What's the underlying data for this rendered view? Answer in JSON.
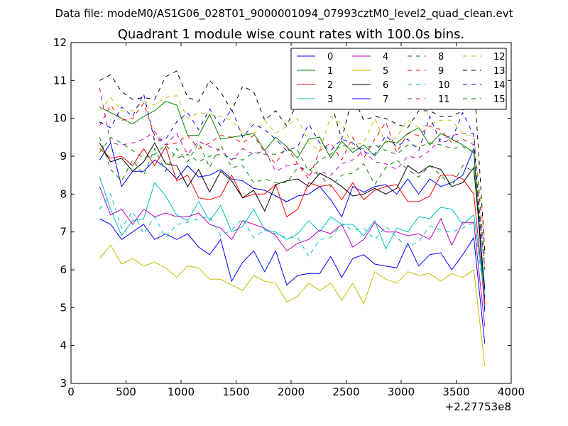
{
  "chart_data": {
    "type": "line",
    "suptitle": "Data file: modeM0/AS1G06_028T01_9000001094_07993cztM0_level2_quad_clean.evt",
    "title": "Quadrant 1 module wise count rates with 100.0s bins.",
    "xlabel": "",
    "ylabel": "",
    "x_offset_label": "+2.27753e8",
    "xlim": [
      0,
      4000
    ],
    "ylim": [
      3,
      12
    ],
    "xticks": [
      0,
      500,
      1000,
      1500,
      2000,
      2500,
      3000,
      3500,
      4000
    ],
    "yticks": [
      3,
      4,
      5,
      6,
      7,
      8,
      9,
      10,
      11,
      12
    ],
    "legend_position": "top-right",
    "grid": false,
    "x": [
      260,
      360,
      460,
      560,
      660,
      760,
      860,
      960,
      1060,
      1160,
      1260,
      1360,
      1460,
      1560,
      1660,
      1760,
      1860,
      1960,
      2060,
      2160,
      2260,
      2360,
      2460,
      2560,
      2660,
      2760,
      2860,
      2960,
      3060,
      3160,
      3260,
      3360,
      3460,
      3560,
      3660,
      3760
    ],
    "series": [
      {
        "name": "0",
        "color": "#0000ff",
        "dash": "solid",
        "values": [
          8.9,
          9.35,
          8.2,
          8.6,
          8.6,
          8.9,
          8.7,
          8.4,
          8.75,
          8.45,
          8.5,
          8.65,
          8.4,
          8.35,
          8.15,
          8.1,
          7.95,
          7.8,
          7.95,
          8.0,
          8.2,
          7.85,
          7.4,
          8.2,
          8.05,
          8.2,
          8.25,
          8.0,
          8.4,
          8.0,
          8.4,
          8.2,
          8.3,
          8.5,
          9.2,
          4.9
        ]
      },
      {
        "name": "1",
        "color": "#008000",
        "dash": "solid",
        "values": [
          10.3,
          10.15,
          10.0,
          9.85,
          10.05,
          10.2,
          10.45,
          10.35,
          9.55,
          9.55,
          10.1,
          9.45,
          9.5,
          9.55,
          9.6,
          9.15,
          9.5,
          9.25,
          8.95,
          9.45,
          9.5,
          8.95,
          9.4,
          9.1,
          9.3,
          9.0,
          9.4,
          9.35,
          9.6,
          9.75,
          9.3,
          9.6,
          9.45,
          9.3,
          9.1,
          5.1
        ]
      },
      {
        "name": "2",
        "color": "#ff0000",
        "dash": "solid",
        "values": [
          9.2,
          8.95,
          9.0,
          8.75,
          9.2,
          8.75,
          9.25,
          8.35,
          8.5,
          7.9,
          7.85,
          7.95,
          8.5,
          7.9,
          8.0,
          8.0,
          8.25,
          7.4,
          7.6,
          8.3,
          8.2,
          8.25,
          7.85,
          8.3,
          7.85,
          8.1,
          8.2,
          8.25,
          7.8,
          7.8,
          7.95,
          8.5,
          8.5,
          8.4,
          8.0,
          5.1
        ]
      },
      {
        "name": "3",
        "color": "#00bfbf",
        "dash": "solid",
        "values": [
          8.45,
          7.6,
          6.9,
          7.3,
          7.35,
          8.3,
          7.95,
          7.45,
          7.3,
          7.8,
          7.3,
          7.7,
          7.0,
          7.15,
          7.6,
          7.05,
          7.0,
          6.8,
          6.95,
          7.3,
          7.0,
          7.4,
          7.2,
          7.2,
          6.9,
          7.3,
          6.55,
          7.1,
          7.0,
          7.4,
          7.35,
          7.65,
          7.6,
          7.2,
          7.45,
          5.4
        ]
      },
      {
        "name": "4",
        "color": "#bf00bf",
        "dash": "solid",
        "values": [
          8.2,
          7.45,
          7.6,
          7.2,
          7.6,
          7.4,
          7.5,
          7.4,
          7.4,
          7.5,
          7.2,
          7.1,
          6.8,
          7.3,
          7.2,
          7.1,
          6.9,
          6.5,
          6.7,
          6.8,
          7.05,
          6.95,
          7.2,
          6.6,
          6.8,
          7.25,
          7.0,
          7.0,
          6.9,
          6.95,
          6.8,
          7.35,
          6.65,
          7.25,
          7.25,
          4.5
        ]
      },
      {
        "name": "5",
        "color": "#bfbf00",
        "dash": "solid",
        "values": [
          6.3,
          6.65,
          6.15,
          6.3,
          6.1,
          6.2,
          6.05,
          5.8,
          6.1,
          6.05,
          5.75,
          5.75,
          5.6,
          5.45,
          5.85,
          5.7,
          5.65,
          5.15,
          5.3,
          5.65,
          5.45,
          5.65,
          5.2,
          5.65,
          5.1,
          5.95,
          5.75,
          5.65,
          5.95,
          5.85,
          5.9,
          5.7,
          5.9,
          5.8,
          6.0,
          3.45
        ]
      },
      {
        "name": "6",
        "color": "#000000",
        "dash": "solid",
        "values": [
          9.35,
          8.85,
          8.95,
          8.6,
          8.85,
          9.35,
          8.8,
          8.75,
          8.2,
          8.65,
          8.05,
          8.6,
          8.35,
          7.9,
          8.1,
          7.55,
          8.25,
          8.35,
          8.4,
          8.2,
          8.55,
          8.4,
          8.2,
          7.95,
          8.0,
          8.15,
          8.0,
          8.15,
          8.75,
          8.55,
          8.75,
          8.65,
          8.2,
          8.3,
          8.7,
          5.5
        ]
      },
      {
        "name": "7",
        "color": "#0000ff",
        "dash": "solid",
        "values": [
          7.35,
          7.2,
          6.8,
          7.0,
          7.2,
          6.8,
          6.95,
          6.8,
          6.95,
          6.6,
          6.4,
          6.8,
          5.7,
          6.2,
          6.5,
          5.95,
          6.5,
          5.6,
          5.85,
          5.9,
          5.9,
          6.35,
          5.8,
          6.3,
          6.4,
          6.15,
          6.1,
          6.05,
          6.7,
          6.1,
          6.4,
          6.45,
          6.0,
          6.4,
          6.85,
          4.05
        ]
      },
      {
        "name": "8",
        "color": "#008000",
        "dash": "dashed",
        "values": [
          9.5,
          8.65,
          8.35,
          8.9,
          8.5,
          9.2,
          8.6,
          9.2,
          8.85,
          9.35,
          8.7,
          9.3,
          8.7,
          8.75,
          8.3,
          8.4,
          8.3,
          8.3,
          8.7,
          8.65,
          8.5,
          8.2,
          8.5,
          8.55,
          8.8,
          8.25,
          8.7,
          8.9,
          8.65,
          8.45,
          8.75,
          8.5,
          8.2,
          8.75,
          8.6,
          6.1
        ]
      },
      {
        "name": "9",
        "color": "#ff0000",
        "dash": "dashed",
        "values": [
          9.8,
          10.35,
          9.95,
          10.0,
          10.4,
          9.55,
          9.3,
          9.35,
          9.55,
          9.2,
          9.35,
          9.55,
          9.5,
          9.35,
          9.55,
          9.1,
          8.8,
          9.25,
          8.8,
          8.4,
          9.15,
          9.35,
          8.9,
          9.5,
          8.95,
          9.45,
          9.9,
          9.1,
          9.6,
          9.55,
          9.8,
          9.7,
          9.35,
          9.45,
          9.3,
          6.0
        ]
      },
      {
        "name": "10",
        "color": "#00bfbf",
        "dash": "dashed",
        "values": [
          7.6,
          8.0,
          7.1,
          7.55,
          6.95,
          7.4,
          6.85,
          7.2,
          7.25,
          7.35,
          7.4,
          6.9,
          7.05,
          7.35,
          6.85,
          7.05,
          6.95,
          6.85,
          6.85,
          6.35,
          6.8,
          6.85,
          7.2,
          7.05,
          7.1,
          6.8,
          7.15,
          6.85,
          6.6,
          6.75,
          7.15,
          7.05,
          7.0,
          7.1,
          7.25,
          5.3
        ]
      },
      {
        "name": "11",
        "color": "#bf00bf",
        "dash": "dashed",
        "values": [
          10.8,
          9.35,
          9.3,
          9.35,
          9.45,
          9.65,
          9.3,
          9.6,
          9.05,
          9.4,
          9.25,
          9.15,
          8.9,
          9.2,
          9.05,
          9.15,
          8.6,
          8.75,
          8.8,
          8.5,
          8.6,
          8.5,
          8.8,
          8.9,
          9.15,
          8.85,
          8.8,
          8.65,
          9.0,
          8.95,
          9.15,
          9.45,
          9.55,
          9.6,
          9.6,
          6.3
        ]
      },
      {
        "name": "12",
        "color": "#bfbf00",
        "dash": "dashed",
        "values": [
          10.2,
          10.55,
          10.2,
          10.2,
          10.45,
          10.35,
          10.55,
          10.6,
          10.0,
          10.15,
          10.1,
          10.05,
          9.95,
          9.6,
          9.6,
          9.95,
          9.6,
          9.8,
          10.0,
          9.35,
          9.15,
          10.05,
          9.85,
          9.3,
          9.35,
          10.0,
          9.35,
          9.5,
          9.95,
          9.75,
          9.85,
          9.95,
          9.95,
          9.6,
          9.5,
          6.8
        ]
      },
      {
        "name": "13",
        "color": "#000000",
        "dash": "dashed",
        "values": [
          11.0,
          11.15,
          10.7,
          10.5,
          10.55,
          10.5,
          11.1,
          11.25,
          10.55,
          10.45,
          11.0,
          10.7,
          10.2,
          10.85,
          10.7,
          9.95,
          10.2,
          9.8,
          10.45,
          10.5,
          10.2,
          10.45,
          9.45,
          10.6,
          9.95,
          10.05,
          10.0,
          9.85,
          9.75,
          10.2,
          10.2,
          10.05,
          10.05,
          10.2,
          11.1,
          6.5
        ]
      },
      {
        "name": "14",
        "color": "#0000ff",
        "dash": "dashed",
        "values": [
          9.9,
          9.75,
          10.3,
          10.05,
          10.65,
          9.4,
          9.45,
          9.9,
          10.15,
          9.7,
          10.25,
          9.8,
          10.25,
          9.5,
          9.85,
          9.7,
          9.45,
          9.15,
          9.25,
          9.85,
          9.35,
          9.15,
          9.45,
          9.35,
          9.1,
          9.05,
          9.55,
          9.25,
          9.45,
          9.15,
          10.05,
          9.35,
          9.45,
          10.15,
          9.55,
          5.2
        ]
      },
      {
        "name": "15",
        "color": "#008000",
        "dash": "dashed",
        "values": [
          9.1,
          9.5,
          9.35,
          9.15,
          8.95,
          9.05,
          9.3,
          8.95,
          9.05,
          8.85,
          9.0,
          9.05,
          8.95,
          8.9,
          9.1,
          9.05,
          9.05,
          9.15,
          9.15,
          8.6,
          8.9,
          9.05,
          9.3,
          9.2,
          9.2,
          9.3,
          9.15,
          9.05,
          9.3,
          9.25,
          9.35,
          9.3,
          9.2,
          9.25,
          9.1,
          6.0
        ]
      }
    ]
  }
}
